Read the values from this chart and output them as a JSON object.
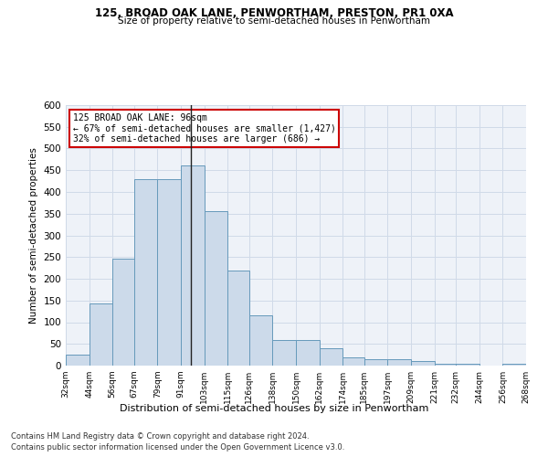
{
  "title1": "125, BROAD OAK LANE, PENWORTHAM, PRESTON, PR1 0XA",
  "title2": "Size of property relative to semi-detached houses in Penwortham",
  "xlabel": "Distribution of semi-detached houses by size in Penwortham",
  "ylabel": "Number of semi-detached properties",
  "footnote1": "Contains HM Land Registry data © Crown copyright and database right 2024.",
  "footnote2": "Contains public sector information licensed under the Open Government Licence v3.0.",
  "annotation_line1": "125 BROAD OAK LANE: 96sqm",
  "annotation_line2": "← 67% of semi-detached houses are smaller (1,427)",
  "annotation_line3": "32% of semi-detached houses are larger (686) →",
  "property_size": 96,
  "bar_color": "#ccdaea",
  "bar_edge_color": "#6699bb",
  "annotation_box_color": "#cc0000",
  "vertical_line_color": "#222222",
  "grid_color": "#d0dae8",
  "bin_edges": [
    32,
    44,
    56,
    67,
    79,
    91,
    103,
    115,
    126,
    138,
    150,
    162,
    174,
    185,
    197,
    209,
    221,
    232,
    244,
    256,
    268
  ],
  "bin_labels": [
    "32sqm",
    "44sqm",
    "56sqm",
    "67sqm",
    "79sqm",
    "91sqm",
    "103sqm",
    "115sqm",
    "126sqm",
    "138sqm",
    "150sqm",
    "162sqm",
    "174sqm",
    "185sqm",
    "197sqm",
    "209sqm",
    "221sqm",
    "232sqm",
    "244sqm",
    "256sqm",
    "268sqm"
  ],
  "counts": [
    25,
    143,
    247,
    430,
    430,
    460,
    355,
    220,
    115,
    60,
    60,
    40,
    20,
    15,
    15,
    10,
    5,
    5,
    0,
    5
  ],
  "ylim": [
    0,
    600
  ],
  "yticks": [
    0,
    50,
    100,
    150,
    200,
    250,
    300,
    350,
    400,
    450,
    500,
    550,
    600
  ],
  "background_color": "#ffffff",
  "plot_bg_color": "#eef2f8"
}
